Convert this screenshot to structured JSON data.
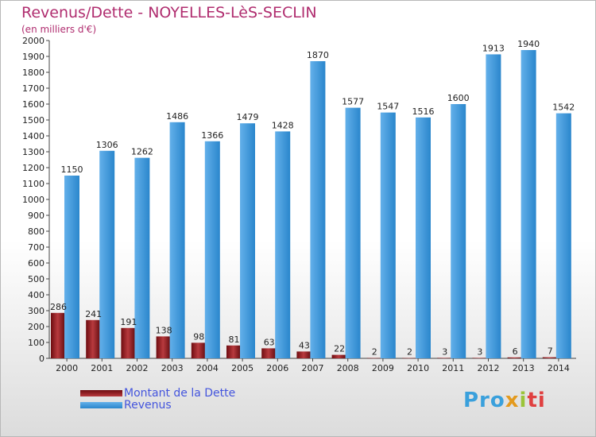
{
  "title": "Revenus/Dette - NOYELLES-LèS-SECLIN",
  "subtitle": "(en milliers d'€)",
  "colors": {
    "dette": "#6e0c10",
    "dette_light": "#b83a3e",
    "revenus": "#2a86cc",
    "revenus_light": "#63b0ea",
    "title": "#b02d6f",
    "legend_text": "#4455dd"
  },
  "legend": {
    "dette_label": "Montant de la Dette",
    "revenus_label": "Revenus"
  },
  "logo": {
    "text": "Proxiti",
    "part1": "Pro",
    "part2": "x",
    "part3": "i",
    "part4": "ti"
  },
  "chart_data": {
    "type": "bar",
    "title": "Revenus/Dette - NOYELLES-LèS-SECLIN",
    "subtitle": "(en milliers d'€)",
    "xlabel": "",
    "ylabel": "",
    "ylim": [
      0,
      2000
    ],
    "ytick_step": 100,
    "grid": false,
    "legend_position": "bottom-left",
    "categories": [
      "2000",
      "2001",
      "2002",
      "2003",
      "2004",
      "2005",
      "2006",
      "2007",
      "2008",
      "2009",
      "2010",
      "2011",
      "2012",
      "2013",
      "2014"
    ],
    "series": [
      {
        "name": "Montant de la Dette",
        "values": [
          286,
          241,
          191,
          138,
          98,
          81,
          63,
          43,
          22,
          2,
          2,
          3,
          3,
          6,
          7
        ]
      },
      {
        "name": "Revenus",
        "values": [
          1150,
          1306,
          1262,
          1486,
          1366,
          1479,
          1428,
          1870,
          1577,
          1547,
          1516,
          1600,
          1913,
          1940,
          1542
        ]
      }
    ]
  }
}
